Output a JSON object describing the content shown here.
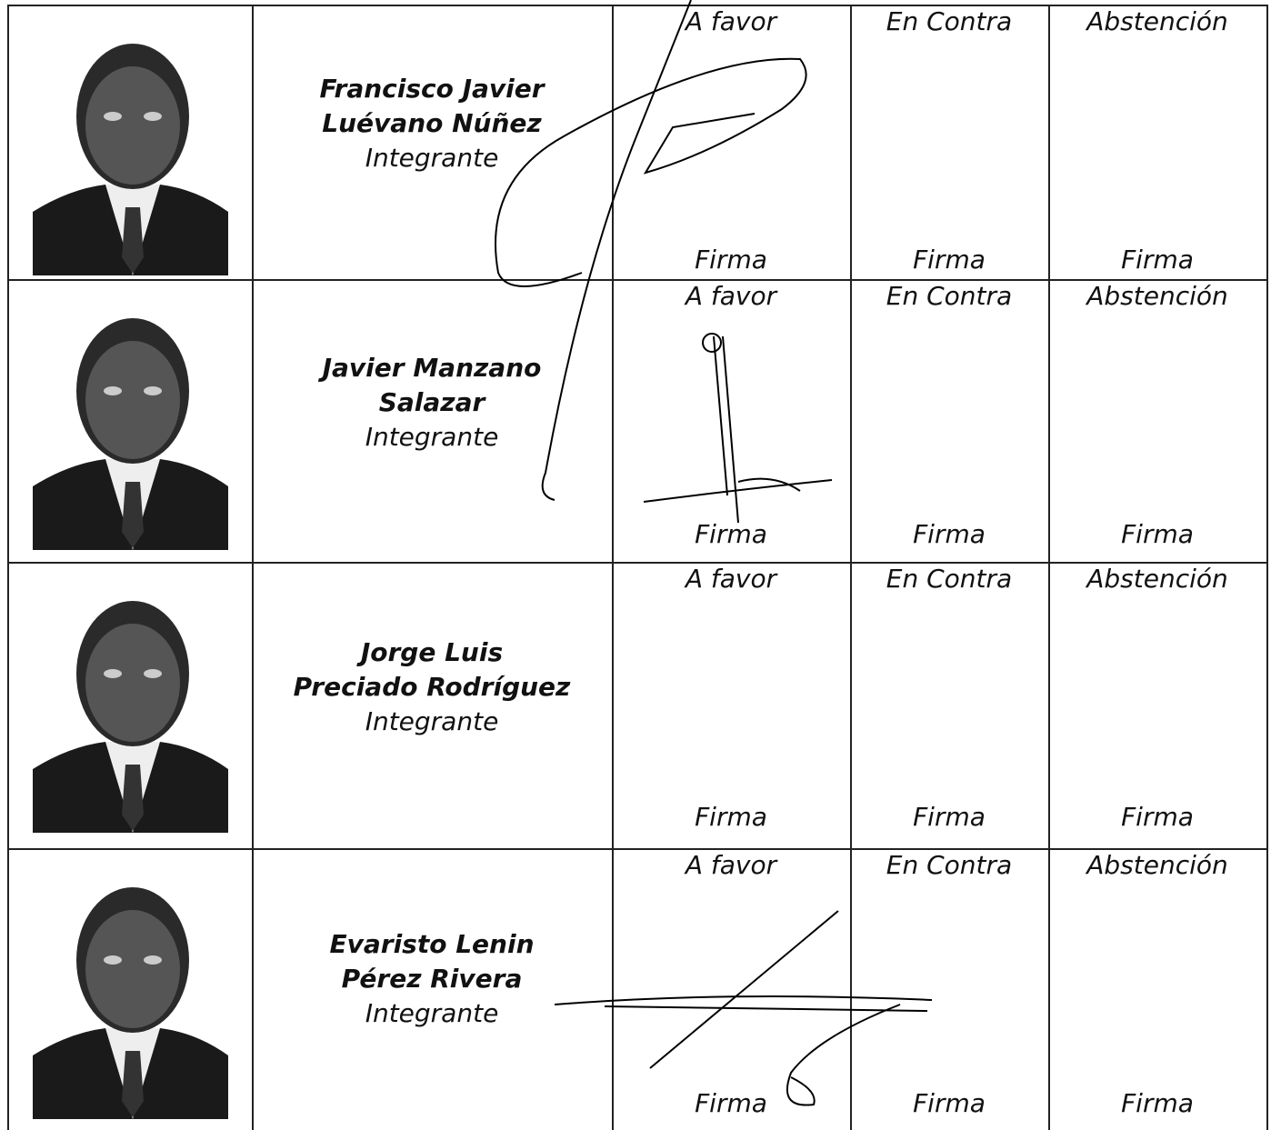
{
  "rows": [
    {
      "name_lines": [
        "Francisco Javier",
        "Luévano Núñez"
      ],
      "role": "Integrante",
      "votes": [
        {
          "label": "A favor",
          "sign": "Firma"
        },
        {
          "label": "En Contra",
          "sign": "Firma"
        },
        {
          "label": "Abstención",
          "sign": "Firma"
        }
      ]
    },
    {
      "name_lines": [
        "Javier Manzano",
        "Salazar"
      ],
      "role": "Integrante",
      "votes": [
        {
          "label": "A favor",
          "sign": "Firma"
        },
        {
          "label": "En Contra",
          "sign": "Firma"
        },
        {
          "label": "Abstención",
          "sign": "Firma"
        }
      ]
    },
    {
      "name_lines": [
        "Jorge Luis",
        "Preciado Rodríguez"
      ],
      "role": "Integrante",
      "votes": [
        {
          "label": "A favor",
          "sign": "Firma"
        },
        {
          "label": "En Contra",
          "sign": "Firma"
        },
        {
          "label": "Abstención",
          "sign": "Firma"
        }
      ]
    },
    {
      "name_lines": [
        "Evaristo Lenin",
        "Pérez Rivera"
      ],
      "role": "Integrante",
      "votes": [
        {
          "label": "A favor",
          "sign": "Firma"
        },
        {
          "label": "En Contra",
          "sign": "Firma"
        },
        {
          "label": "Abstención",
          "sign": "Firma"
        }
      ]
    }
  ]
}
